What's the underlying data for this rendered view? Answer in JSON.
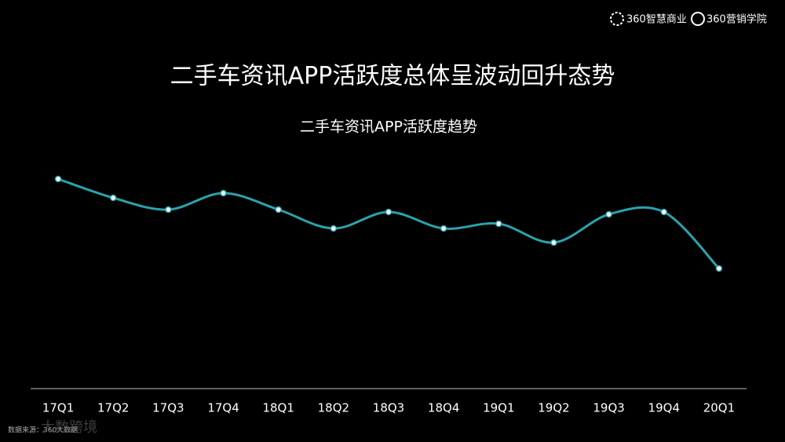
{
  "brand": {
    "left": "360智慧商业",
    "right": "360营销学院"
  },
  "source": "数据来源：360大数据",
  "watermark": "大数跨境",
  "chart_data": {
    "type": "line",
    "title": "二手车资讯APP活跃度总体呈波动回升态势",
    "subtitle": "二手车资讯APP活跃度趋势",
    "categories": [
      "17Q1",
      "17Q2",
      "17Q3",
      "17Q4",
      "18Q1",
      "18Q2",
      "18Q3",
      "18Q4",
      "19Q1",
      "19Q2",
      "19Q3",
      "19Q4",
      "20Q1"
    ],
    "values": [
      89,
      81,
      76,
      83,
      76,
      68,
      75,
      68,
      70,
      62,
      74,
      75,
      51
    ],
    "color": "#2aa3ad",
    "ylim": [
      0,
      100
    ]
  }
}
